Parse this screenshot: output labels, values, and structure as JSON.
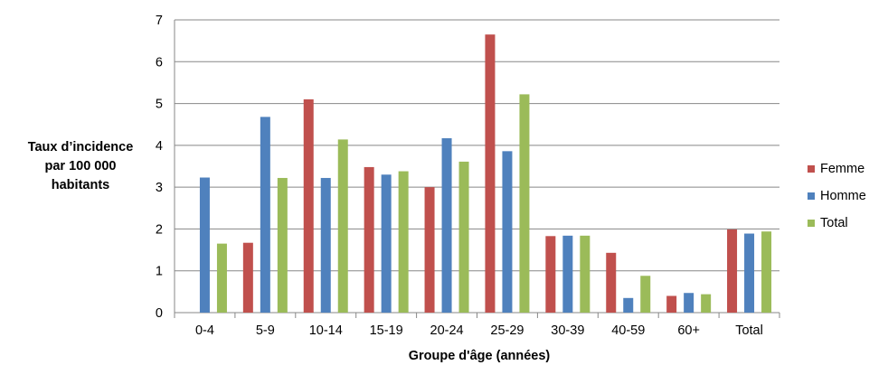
{
  "chart_data": {
    "type": "bar",
    "title": "",
    "ylabel_lines": [
      "Taux d’incidence",
      "par 100 000",
      "habitants"
    ],
    "xlabel": "Groupe d'âge (années)",
    "categories": [
      "0-4",
      "5-9",
      "10-14",
      "15-19",
      "20-24",
      "25-29",
      "30-39",
      "40-59",
      "60+",
      "Total"
    ],
    "ylim": [
      0,
      7
    ],
    "yticks": [
      0,
      1,
      2,
      3,
      4,
      5,
      6,
      7
    ],
    "grid": true,
    "legend_position": "right",
    "series": [
      {
        "name": "Femme",
        "color": "#C0504D",
        "values": [
          null,
          1.67,
          5.1,
          3.48,
          3.0,
          6.65,
          1.83,
          1.43,
          0.4,
          1.99
        ]
      },
      {
        "name": "Homme",
        "color": "#4F81BD",
        "values": [
          3.23,
          4.68,
          3.22,
          3.3,
          4.17,
          3.86,
          1.84,
          0.35,
          0.47,
          1.89
        ]
      },
      {
        "name": "Total",
        "color": "#9BBB59",
        "values": [
          1.65,
          3.22,
          4.14,
          3.38,
          3.61,
          5.22,
          1.84,
          0.88,
          0.44,
          1.94
        ]
      }
    ]
  }
}
